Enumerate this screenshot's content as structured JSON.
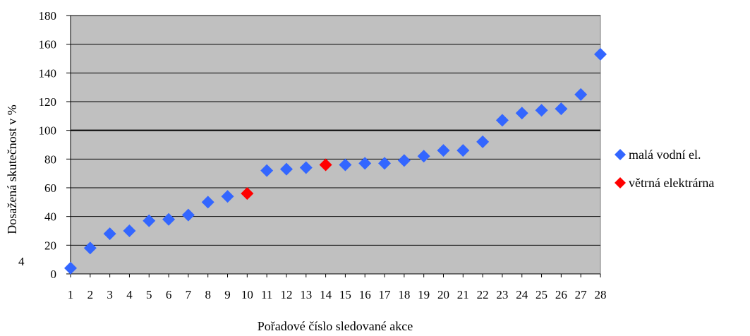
{
  "chart_data": {
    "type": "scatter",
    "xlabel": "Pořadové číslo sledované akce",
    "ylabel": "Dosažená skutečnost v %",
    "x_ticks": [
      "1",
      "2",
      "3",
      "4",
      "5",
      "6",
      "7",
      "8",
      "9",
      "10",
      "11",
      "12",
      "13",
      "14",
      "15",
      "16",
      "17",
      "18",
      "19",
      "20",
      "21",
      "22",
      "23",
      "24",
      "25",
      "26",
      "27",
      "28"
    ],
    "y_ticks": [
      "0",
      "4",
      "20",
      "40",
      "60",
      "80",
      "100",
      "120",
      "140",
      "160",
      "180"
    ],
    "ylim": [
      0,
      180
    ],
    "xlim": [
      1,
      28
    ],
    "reference_line": 100,
    "plot_background": "#c0c0c0",
    "grid": true,
    "legend_position": "right",
    "series": [
      {
        "name": "malá vodní el.",
        "color": "#3366ff",
        "marker": "diamond",
        "points": [
          [
            1,
            4
          ],
          [
            2,
            18
          ],
          [
            3,
            28
          ],
          [
            4,
            30
          ],
          [
            5,
            37
          ],
          [
            6,
            38
          ],
          [
            7,
            41
          ],
          [
            8,
            50
          ],
          [
            9,
            54
          ],
          [
            11,
            72
          ],
          [
            12,
            73
          ],
          [
            13,
            74
          ],
          [
            15,
            76
          ],
          [
            16,
            77
          ],
          [
            17,
            77
          ],
          [
            18,
            79
          ],
          [
            19,
            82
          ],
          [
            20,
            86
          ],
          [
            21,
            86
          ],
          [
            22,
            92
          ],
          [
            23,
            107
          ],
          [
            24,
            112
          ],
          [
            25,
            114
          ],
          [
            26,
            115
          ],
          [
            27,
            125
          ],
          [
            28,
            153
          ]
        ]
      },
      {
        "name": "větrná elektrárna",
        "color": "#ff0000",
        "marker": "diamond",
        "points": [
          [
            10,
            56
          ],
          [
            14,
            76
          ]
        ]
      }
    ]
  }
}
